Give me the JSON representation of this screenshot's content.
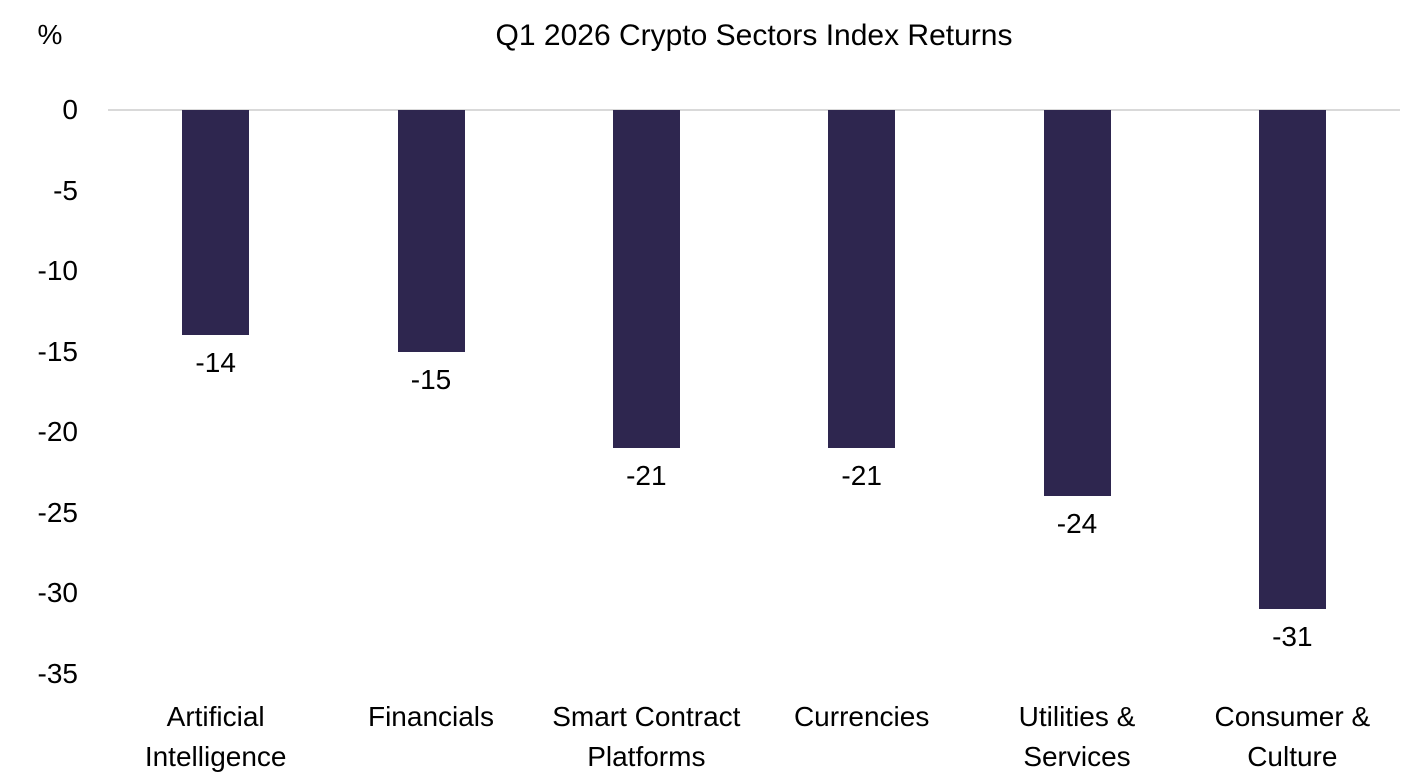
{
  "chart": {
    "unit_label": "%"
  },
  "chart_data": {
    "type": "bar",
    "title": "Q1 2026 Crypto Sectors Index Returns",
    "unit": "%",
    "categories": [
      "Artificial Intelligence",
      "Financials",
      "Smart Contract Platforms",
      "Currencies",
      "Utilities & Services",
      "Consumer & Culture"
    ],
    "category_lines": [
      [
        "Artificial",
        "Intelligence"
      ],
      [
        "Financials"
      ],
      [
        "Smart Contract",
        "Platforms"
      ],
      [
        "Currencies"
      ],
      [
        "Utilities &",
        "Services"
      ],
      [
        "Consumer &",
        "Culture"
      ]
    ],
    "values": [
      -14,
      -15,
      -21,
      -21,
      -24,
      -31
    ],
    "data_labels": [
      "-14",
      "-15",
      "-21",
      "-21",
      "-24",
      "-31"
    ],
    "xlabel": "",
    "ylabel": "%",
    "ylim": [
      -35,
      0
    ],
    "yticks": [
      0,
      -5,
      -10,
      -15,
      -20,
      -25,
      -30,
      -35
    ],
    "grid": false,
    "legend_position": "none",
    "data_label_position": "outside-end",
    "bar_color": "#2E264F",
    "axis_line_color": "#D9D9D9",
    "text_color": "#000000"
  }
}
